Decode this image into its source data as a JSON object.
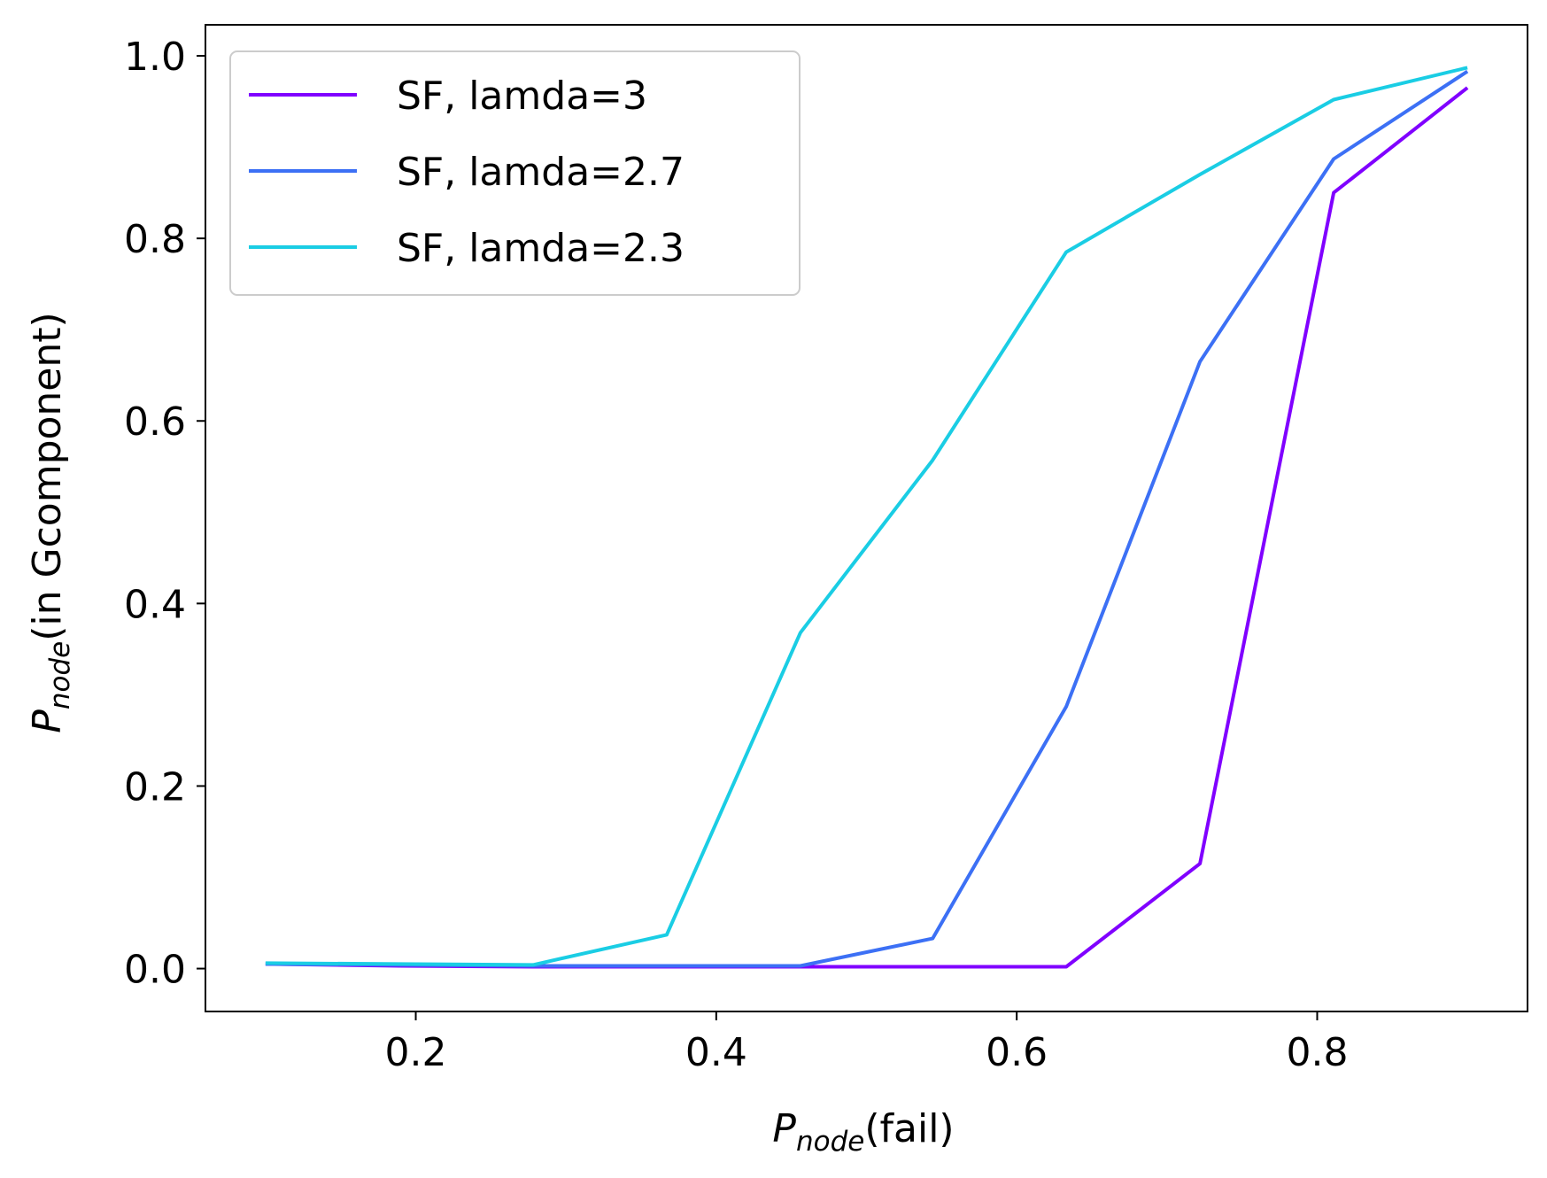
{
  "chart_data": {
    "type": "line",
    "title": "",
    "xlabel": {
      "main": "P",
      "sub": "node",
      "rest": "(fail)"
    },
    "ylabel": {
      "main": "P",
      "sub": "node",
      "rest": "(in Gcomponent)"
    },
    "xlim": [
      0.06,
      0.94
    ],
    "ylim": [
      -0.047,
      1.034
    ],
    "xticks": [
      0.2,
      0.4,
      0.6,
      0.8
    ],
    "xtick_labels": [
      "0.2",
      "0.4",
      "0.6",
      "0.8"
    ],
    "yticks": [
      0.0,
      0.2,
      0.4,
      0.6,
      0.8,
      1.0
    ],
    "ytick_labels": [
      "0.0",
      "0.2",
      "0.4",
      "0.6",
      "0.8",
      "1.0"
    ],
    "grid": false,
    "legend_position": "upper-left",
    "x": [
      0.1,
      0.189,
      0.278,
      0.367,
      0.456,
      0.544,
      0.633,
      0.722,
      0.811,
      0.9
    ],
    "series": [
      {
        "name": "SF, lamda=3",
        "color": "#8000ff",
        "values": [
          0.005,
          0.003,
          0.002,
          0.002,
          0.002,
          0.002,
          0.002,
          0.115,
          0.85,
          0.965
        ]
      },
      {
        "name": "SF, lamda=2.7",
        "color": "#3c70f5",
        "values": [
          0.005,
          0.004,
          0.003,
          0.003,
          0.003,
          0.033,
          0.287,
          0.665,
          0.887,
          0.983
        ]
      },
      {
        "name": "SF, lamda=2.3",
        "color": "#1acde4",
        "values": [
          0.006,
          0.005,
          0.004,
          0.037,
          0.368,
          0.557,
          0.785,
          0.87,
          0.952,
          0.987
        ]
      }
    ]
  }
}
